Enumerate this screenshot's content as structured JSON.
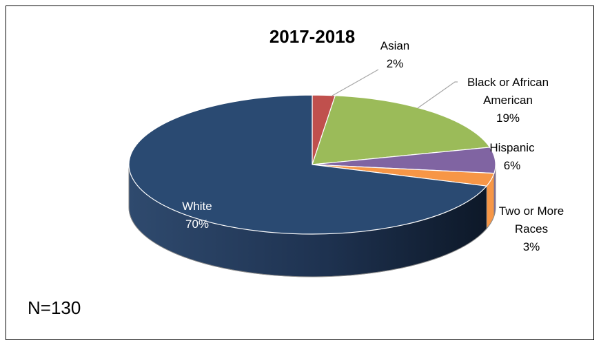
{
  "chart_data": {
    "type": "pie",
    "title": "2017-2018",
    "slices": [
      {
        "label_lines": [
          "Asian"
        ],
        "pct_label": "2%",
        "value": 2,
        "color": "#C0504D"
      },
      {
        "label_lines": [
          "Black or African",
          "American"
        ],
        "pct_label": "19%",
        "value": 19,
        "color": "#9BBB59"
      },
      {
        "label_lines": [
          "Hispanic"
        ],
        "pct_label": "6%",
        "value": 6,
        "color": "#8064A2"
      },
      {
        "label_lines": [
          "Two or More",
          "Races"
        ],
        "pct_label": "3%",
        "value": 3,
        "color": "#F79646"
      },
      {
        "label_lines": [
          "White"
        ],
        "pct_label": "70%",
        "value": 70,
        "color": "#2A4A72"
      }
    ],
    "note": "N=130"
  }
}
